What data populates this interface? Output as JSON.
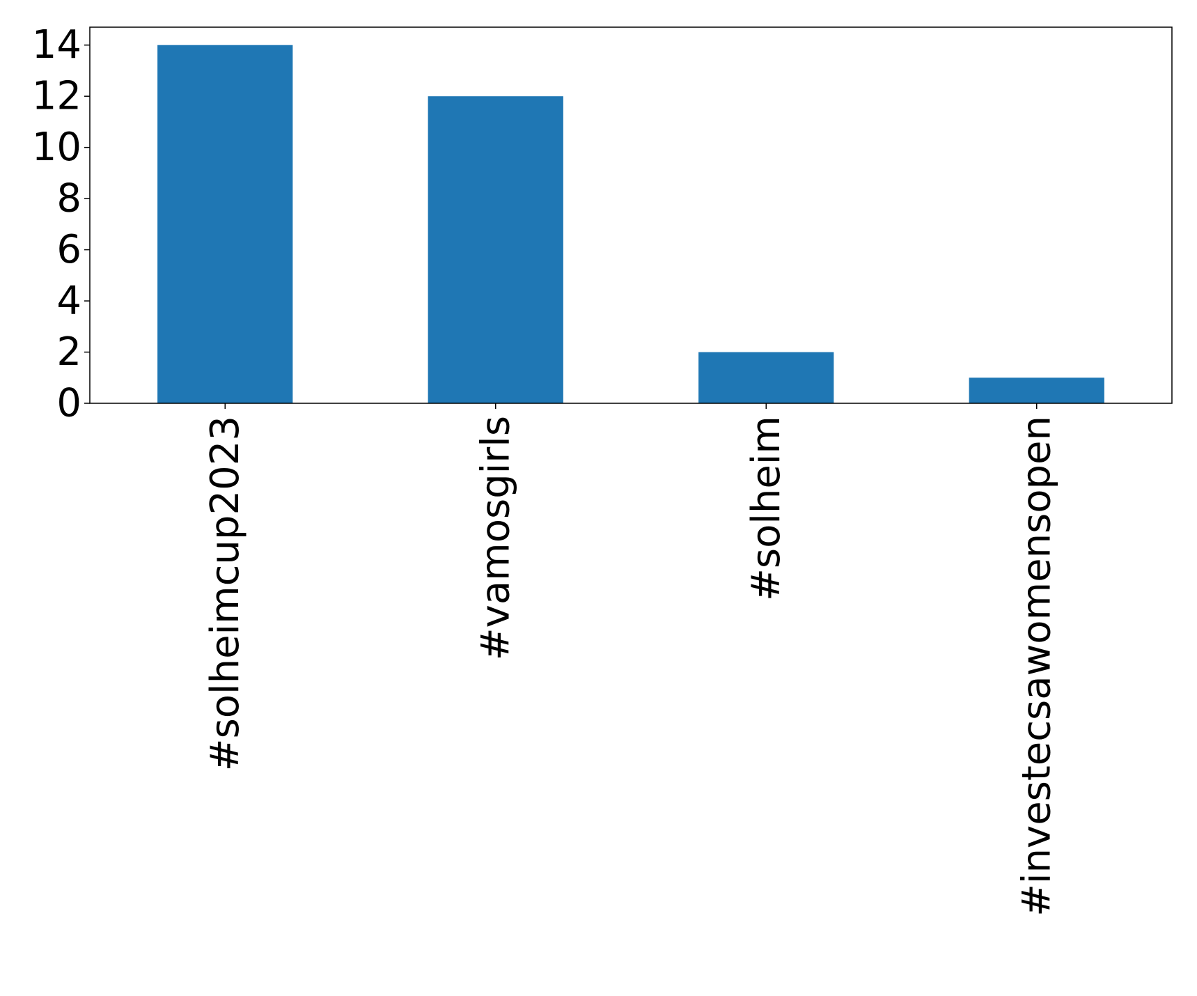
{
  "chart_data": {
    "type": "bar",
    "categories": [
      "#solheimcup2023",
      "#vamosgirls",
      "#solheim",
      "#investecsawomensopen"
    ],
    "values": [
      14,
      12,
      2,
      1
    ],
    "title": "",
    "xlabel": "",
    "ylabel": "",
    "ylim": [
      0,
      14.7
    ],
    "yticks": [
      0,
      2,
      4,
      6,
      8,
      10,
      12,
      14
    ],
    "grid": false,
    "legend": "none",
    "bar_color": "#1f77b4"
  }
}
